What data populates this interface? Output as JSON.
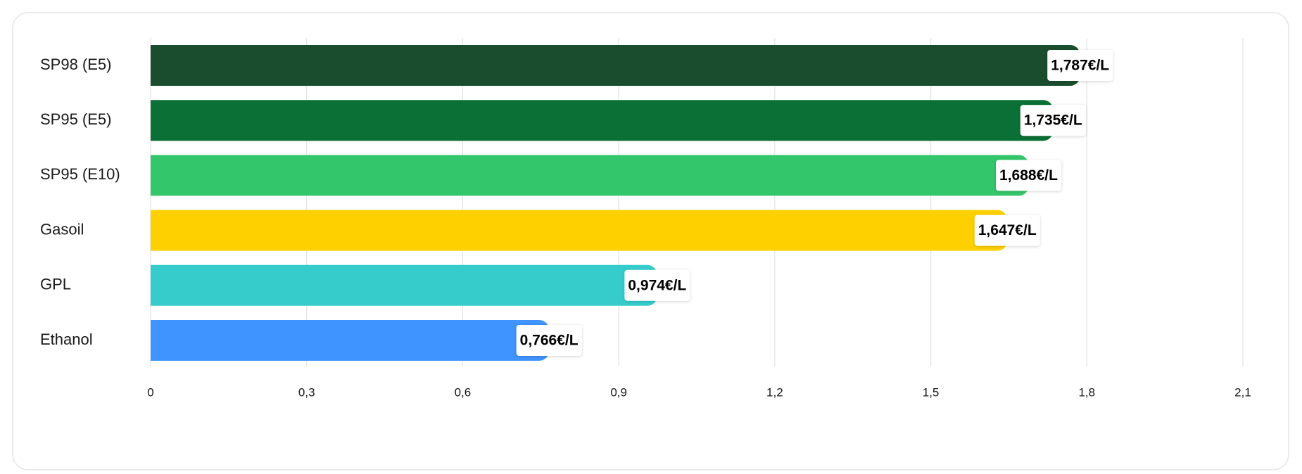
{
  "chart_data": {
    "type": "bar",
    "orientation": "horizontal",
    "categories": [
      "SP98 (E5)",
      "SP95 (E5)",
      "SP95 (E10)",
      "Gasoil",
      "GPL",
      "Ethanol"
    ],
    "values": [
      1.787,
      1.735,
      1.688,
      1.647,
      0.974,
      0.766
    ],
    "value_labels": [
      "1,787€/L",
      "1,735€/L",
      "1,688€/L",
      "1,647€/L",
      "0,974€/L",
      "0,766€/L"
    ],
    "colors": [
      "#1a4d2e",
      "#0a7035",
      "#34c66b",
      "#ffd000",
      "#36cccc",
      "#3f94ff"
    ],
    "xlim": [
      0,
      2.1
    ],
    "xticks": [
      0,
      {
        "value": 0.3,
        "label": "0,3"
      },
      {
        "value": 0.6,
        "label": "0,6"
      },
      {
        "value": 0.9,
        "label": "0,9"
      },
      {
        "value": 1.2,
        "label": "1,2"
      },
      {
        "value": 1.5,
        "label": "1,5"
      },
      {
        "value": 1.8,
        "label": "1,8"
      },
      {
        "value": 2.1,
        "label": "2,1"
      }
    ],
    "grid": true
  }
}
